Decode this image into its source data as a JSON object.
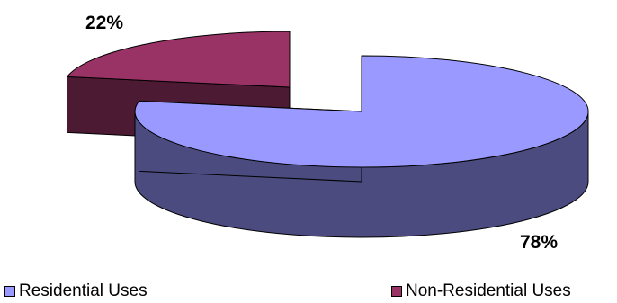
{
  "chart_data": {
    "type": "pie",
    "title": "",
    "style": "3d-exploded",
    "categories": [
      "Residential Uses",
      "Non-Residential Uses"
    ],
    "values": [
      78,
      22
    ],
    "data_labels": [
      "78%",
      "22%"
    ],
    "colors": {
      "Residential Uses": {
        "top": "#9999ff",
        "side": "#4b4b80"
      },
      "Non-Residential Uses": {
        "top": "#993366",
        "side": "#4d1a33"
      }
    },
    "legend_position": "bottom"
  }
}
